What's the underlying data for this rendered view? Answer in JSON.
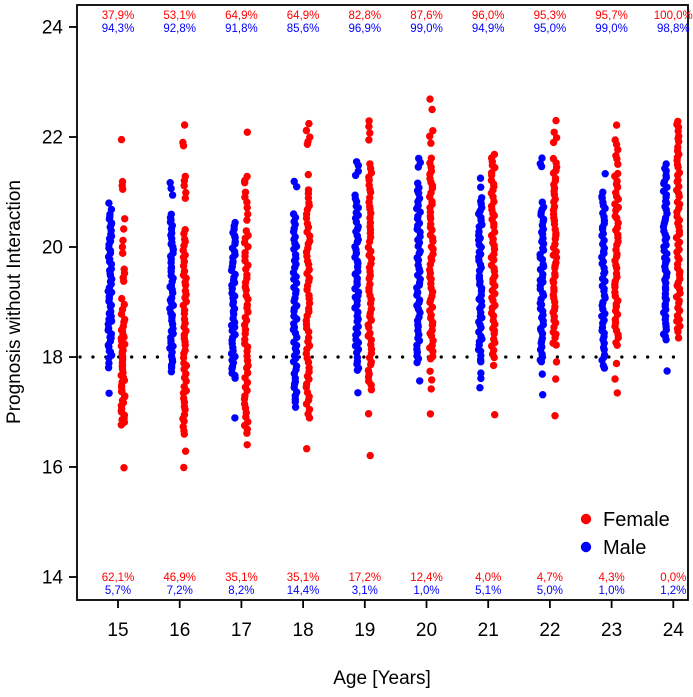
{
  "chart_data": {
    "type": "scatter",
    "subtype": "strip-plot",
    "title": "",
    "xlabel": "Age [Years]",
    "ylabel": "Prognosis without Interaction",
    "x_ticks": [
      15,
      16,
      17,
      18,
      19,
      20,
      21,
      22,
      23,
      24
    ],
    "y_ticks": [
      14,
      16,
      18,
      20,
      22,
      24
    ],
    "xlim": [
      14.33,
      24.24
    ],
    "ylim": [
      13.55,
      24.45
    ],
    "grid": false,
    "threshold_line": {
      "y": 18,
      "style": "dotted",
      "color": "#000000"
    },
    "legend": [
      {
        "label": "Female",
        "color": "#FF0000"
      },
      {
        "label": "Male",
        "color": "#0000FF"
      }
    ],
    "percent_above_line": {
      "female": [
        "37,9%",
        "53,1%",
        "64,9%",
        "64,9%",
        "82,8%",
        "87,6%",
        "96,0%",
        "95,3%",
        "95,7%",
        "100,0%"
      ],
      "male": [
        "94,3%",
        "92,8%",
        "91,8%",
        "85,6%",
        "96,9%",
        "99,0%",
        "94,9%",
        "95,0%",
        "99,0%",
        "98,8%"
      ]
    },
    "percent_below_line": {
      "female": [
        "62,1%",
        "46,9%",
        "35,1%",
        "35,1%",
        "17,2%",
        "12,4%",
        "4,0%",
        "4,7%",
        "4,3%",
        "0,0%"
      ],
      "male": [
        "5,7%",
        "7,2%",
        "8,2%",
        "14,4%",
        "3,1%",
        "1,0%",
        "5,1%",
        "5,0%",
        "1,0%",
        "1,2%"
      ]
    },
    "series": [
      {
        "name": "Male",
        "color": "#0000FF",
        "x_offset": -0.13,
        "strips": [
          {
            "age": 15,
            "segments": [
              [
                17.82,
                17.98,
                3
              ],
              [
                18.02,
                20.55,
                50
              ],
              [
                20.6,
                20.8,
                3
              ]
            ],
            "outliers": [
              17.35
            ]
          },
          {
            "age": 16,
            "segments": [
              [
                17.75,
                20.6,
                52
              ],
              [
                20.95,
                21.15,
                3
              ]
            ],
            "outliers": []
          },
          {
            "age": 17,
            "segments": [
              [
                17.6,
                20.45,
                50
              ]
            ],
            "outliers": [
              16.9
            ]
          },
          {
            "age": 18,
            "segments": [
              [
                17.1,
                20.6,
                54
              ],
              [
                21.1,
                21.2,
                2
              ]
            ],
            "outliers": []
          },
          {
            "age": 19,
            "segments": [
              [
                17.75,
                20.95,
                52
              ],
              [
                21.3,
                21.55,
                4
              ]
            ],
            "outliers": [
              17.35
            ]
          },
          {
            "age": 20,
            "segments": [
              [
                17.9,
                21.15,
                52
              ],
              [
                21.45,
                21.6,
                3
              ]
            ],
            "outliers": [
              17.55
            ]
          },
          {
            "age": 21,
            "segments": [
              [
                17.9,
                20.9,
                50
              ],
              [
                21.1,
                21.25,
                2
              ]
            ],
            "outliers": [
              17.45,
              17.6,
              17.7
            ]
          },
          {
            "age": 22,
            "segments": [
              [
                17.95,
                20.8,
                50
              ],
              [
                21.45,
                21.6,
                3
              ]
            ],
            "outliers": [
              17.3,
              17.7,
              17.9
            ]
          },
          {
            "age": 23,
            "segments": [
              [
                17.8,
                21.0,
                52
              ]
            ],
            "outliers": [
              21.35
            ]
          },
          {
            "age": 24,
            "segments": [
              [
                18.3,
                18.5,
                4
              ],
              [
                18.55,
                21.5,
                50
              ]
            ],
            "outliers": [
              17.75
            ]
          }
        ]
      },
      {
        "name": "Female",
        "color": "#FF0000",
        "x_offset": 0.08,
        "strips": [
          {
            "age": 15,
            "segments": [
              [
                16.75,
                18.55,
                40
              ]
            ],
            "outliers": [
              16.0,
              18.62,
              18.7,
              18.78,
              18.88,
              18.95,
              19.05,
              19.38,
              19.45,
              19.52,
              19.6,
              19.9,
              20.0,
              20.1,
              20.32,
              20.5,
              21.05,
              21.12,
              21.2,
              21.95
            ]
          },
          {
            "age": 16,
            "segments": [
              [
                16.6,
                20.3,
                52
              ]
            ],
            "outliers": [
              16.0,
              16.3,
              20.9,
              21.0,
              21.1,
              21.2,
              21.3,
              21.85,
              21.9,
              22.2
            ]
          },
          {
            "age": 17,
            "segments": [
              [
                16.6,
                20.3,
                48
              ],
              [
                20.5,
                21.0,
                6
              ],
              [
                21.15,
                21.3,
                3
              ]
            ],
            "outliers": [
              16.4,
              22.1
            ]
          },
          {
            "age": 18,
            "segments": [
              [
                16.9,
                21.05,
                55
              ],
              [
                21.85,
                22.1,
                4
              ]
            ],
            "outliers": [
              16.35,
              21.3,
              22.25
            ]
          },
          {
            "age": 19,
            "segments": [
              [
                17.4,
                21.5,
                56
              ],
              [
                21.95,
                22.3,
                4
              ]
            ],
            "outliers": [
              16.2,
              16.95
            ]
          },
          {
            "age": 20,
            "segments": [
              [
                17.95,
                21.6,
                54
              ],
              [
                21.9,
                22.1,
                3
              ]
            ],
            "outliers": [
              16.95,
              17.4,
              17.6,
              17.75,
              22.5,
              22.7
            ]
          },
          {
            "age": 21,
            "segments": [
              [
                18.0,
                21.7,
                56
              ]
            ],
            "outliers": [
              16.95,
              17.85
            ]
          },
          {
            "age": 22,
            "segments": [
              [
                18.2,
                21.6,
                52
              ],
              [
                21.9,
                22.1,
                3
              ]
            ],
            "outliers": [
              16.95,
              17.6,
              17.9,
              22.3
            ]
          },
          {
            "age": 23,
            "segments": [
              [
                18.2,
                21.35,
                46
              ],
              [
                21.5,
                21.95,
                6
              ]
            ],
            "outliers": [
              17.35,
              17.6,
              17.9,
              22.2
            ]
          },
          {
            "age": 24,
            "segments": [
              [
                18.5,
                22.3,
                58
              ]
            ],
            "outliers": [
              18.35,
              18.45
            ]
          }
        ]
      }
    ]
  }
}
